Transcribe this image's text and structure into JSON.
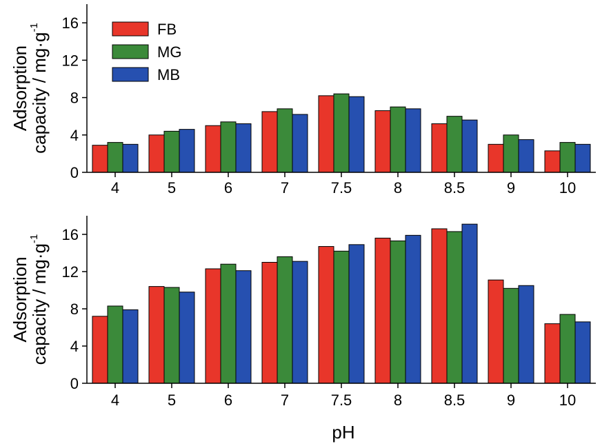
{
  "figure": {
    "xlabel": "pH"
  },
  "chart_data": [
    {
      "type": "bar",
      "ylabel": "Adsorption capacity / mg·g",
      "ylabel_superscript": "-1",
      "ylim": [
        0,
        18
      ],
      "yticks": [
        0,
        4,
        8,
        12,
        16
      ],
      "categories": [
        "4",
        "5",
        "6",
        "7",
        "7.5",
        "8",
        "8.5",
        "9",
        "10"
      ],
      "legend": {
        "position": "top-left"
      },
      "series": [
        {
          "name": "FB",
          "color": "#e8362a",
          "values": [
            2.9,
            4.0,
            5.0,
            6.5,
            8.2,
            6.6,
            5.2,
            3.0,
            2.3
          ]
        },
        {
          "name": "MG",
          "color": "#3b8a3a",
          "values": [
            3.2,
            4.4,
            5.4,
            6.8,
            8.4,
            7.0,
            6.0,
            4.0,
            3.2
          ]
        },
        {
          "name": "MB",
          "color": "#2650b0",
          "values": [
            3.0,
            4.6,
            5.2,
            6.2,
            8.1,
            6.8,
            5.6,
            3.5,
            3.0
          ]
        }
      ]
    },
    {
      "type": "bar",
      "ylabel": "Adsorption capacity / mg·g",
      "ylabel_superscript": "-1",
      "ylim": [
        0,
        18
      ],
      "yticks": [
        0,
        4,
        8,
        12,
        16
      ],
      "categories": [
        "4",
        "5",
        "6",
        "7",
        "7.5",
        "8",
        "8.5",
        "9",
        "10"
      ],
      "series": [
        {
          "name": "FB",
          "color": "#e8362a",
          "values": [
            7.2,
            10.4,
            12.3,
            13.0,
            14.7,
            15.6,
            16.6,
            11.1,
            6.4
          ]
        },
        {
          "name": "MG",
          "color": "#3b8a3a",
          "values": [
            8.3,
            10.3,
            12.8,
            13.6,
            14.2,
            15.3,
            16.3,
            10.2,
            7.4
          ]
        },
        {
          "name": "MB",
          "color": "#2650b0",
          "values": [
            7.9,
            9.8,
            12.1,
            13.1,
            14.9,
            15.9,
            17.1,
            10.5,
            6.6
          ]
        }
      ]
    }
  ]
}
